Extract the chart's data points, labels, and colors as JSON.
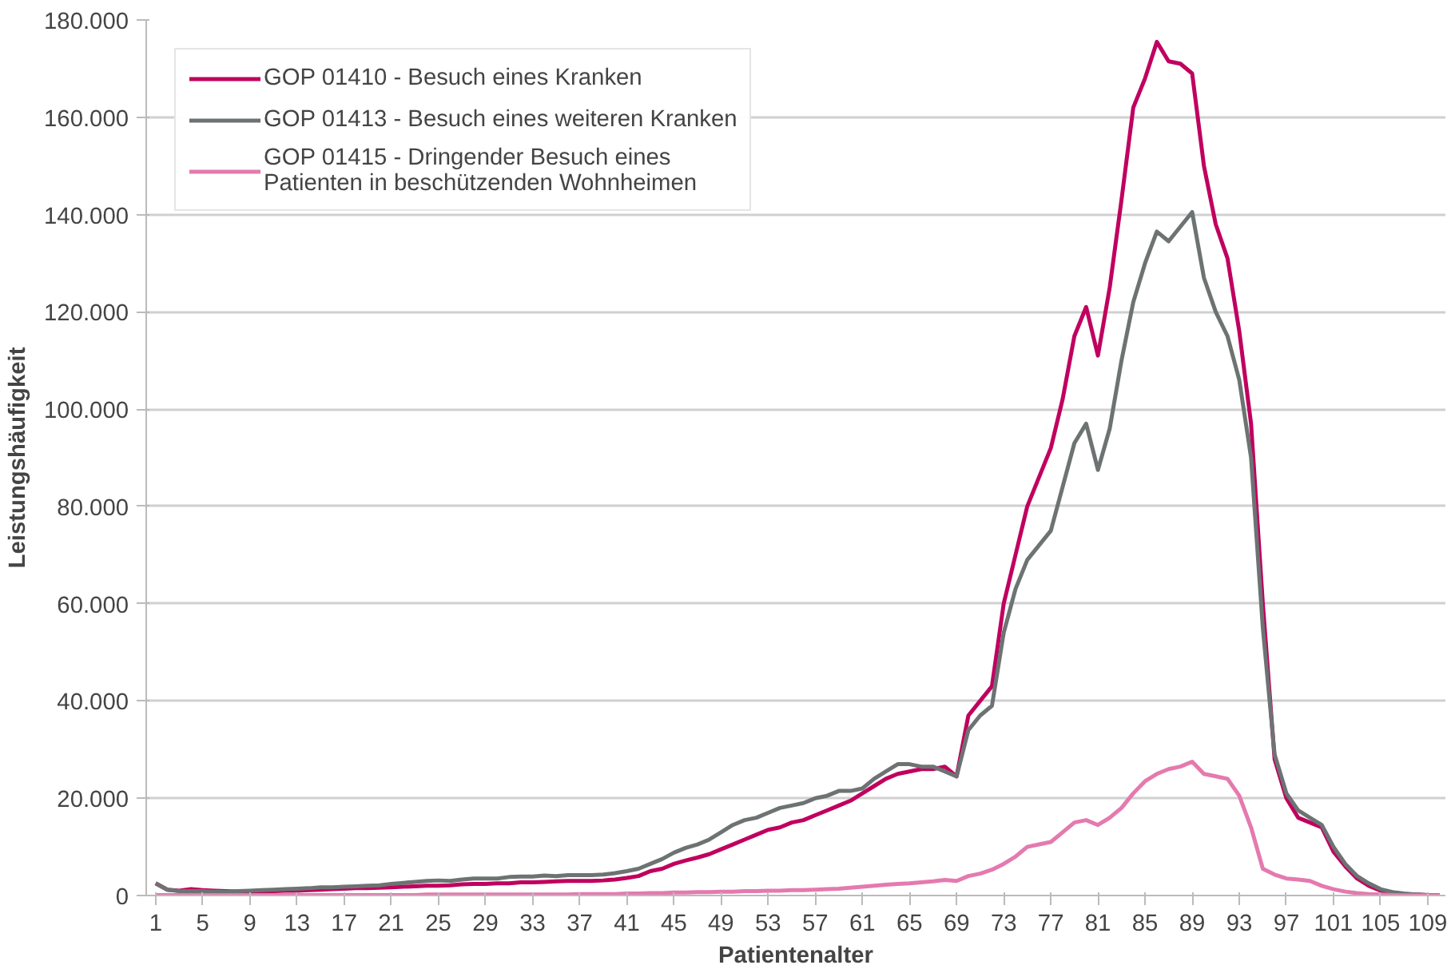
{
  "chart_data": {
    "type": "line",
    "xlabel": "Patientenalter",
    "ylabel": "Leistungshäufigkeit",
    "x": [
      1,
      2,
      3,
      4,
      5,
      6,
      7,
      8,
      9,
      10,
      11,
      12,
      13,
      14,
      15,
      16,
      17,
      18,
      19,
      20,
      21,
      22,
      23,
      24,
      25,
      26,
      27,
      28,
      29,
      30,
      31,
      32,
      33,
      34,
      35,
      36,
      37,
      38,
      39,
      40,
      41,
      42,
      43,
      44,
      45,
      46,
      47,
      48,
      49,
      50,
      51,
      52,
      53,
      54,
      55,
      56,
      57,
      58,
      59,
      60,
      61,
      62,
      63,
      64,
      65,
      66,
      67,
      68,
      69,
      70,
      71,
      72,
      73,
      74,
      75,
      76,
      77,
      78,
      79,
      80,
      81,
      82,
      83,
      84,
      85,
      86,
      87,
      88,
      89,
      90,
      91,
      92,
      93,
      94,
      95,
      96,
      97,
      98,
      99,
      100,
      101,
      102,
      103,
      104,
      105,
      106,
      107,
      108,
      109,
      110
    ],
    "xlim": [
      0.2,
      110.5
    ],
    "xticks": [
      1,
      5,
      9,
      13,
      17,
      21,
      25,
      29,
      33,
      37,
      41,
      45,
      49,
      53,
      57,
      61,
      65,
      69,
      73,
      77,
      81,
      85,
      89,
      93,
      97,
      101,
      105,
      109
    ],
    "ylim": [
      0,
      180000
    ],
    "yticks": [
      {
        "value": 0,
        "label": "0"
      },
      {
        "value": 20000,
        "label": "20.000"
      },
      {
        "value": 40000,
        "label": "40.000"
      },
      {
        "value": 60000,
        "label": "60.000"
      },
      {
        "value": 80000,
        "label": "80.000"
      },
      {
        "value": 100000,
        "label": "100.000"
      },
      {
        "value": 120000,
        "label": "120.000"
      },
      {
        "value": 140000,
        "label": "140.000"
      },
      {
        "value": 160000,
        "label": "160.000"
      },
      {
        "value": 180000,
        "label": "180.000"
      }
    ],
    "grid": "y",
    "legend": "top left",
    "marker": "none",
    "line_style": "solid",
    "series": [
      {
        "name": "GOP 01410 - Besuch eines Kranken",
        "color": "#c0005f",
        "values": [
          2500,
          1200,
          1000,
          1300,
          1100,
          1000,
          900,
          800,
          800,
          900,
          900,
          1000,
          1000,
          1100,
          1200,
          1300,
          1400,
          1500,
          1500,
          1600,
          1700,
          1800,
          1900,
          2000,
          2000,
          2100,
          2300,
          2400,
          2400,
          2500,
          2500,
          2700,
          2700,
          2800,
          2900,
          3000,
          3000,
          3000,
          3100,
          3300,
          3600,
          4000,
          5000,
          5500,
          6500,
          7200,
          7800,
          8500,
          9500,
          10500,
          11500,
          12500,
          13500,
          14000,
          15000,
          15500,
          16500,
          17500,
          18500,
          19500,
          21000,
          22500,
          24000,
          25000,
          25500,
          26000,
          26000,
          26500,
          24500,
          37000,
          40000,
          43000,
          60000,
          70000,
          80000,
          86000,
          92000,
          102000,
          115000,
          121000,
          111000,
          125000,
          143000,
          162000,
          168000,
          175500,
          171500,
          171000,
          169000,
          150000,
          138000,
          131000,
          116000,
          97000,
          60000,
          28000,
          20000,
          16000,
          15000,
          14000,
          9000,
          6000,
          3500,
          2000,
          1000,
          600,
          300,
          200,
          100,
          50
        ]
      },
      {
        "name": "GOP 01413 - Besuch eines weiteren Kranken",
        "color": "#6d7373",
        "values": [
          2500,
          1200,
          900,
          900,
          900,
          800,
          800,
          900,
          1000,
          1100,
          1200,
          1300,
          1400,
          1500,
          1700,
          1700,
          1800,
          1900,
          2000,
          2100,
          2400,
          2600,
          2800,
          3000,
          3100,
          3000,
          3300,
          3500,
          3500,
          3500,
          3800,
          3900,
          3900,
          4100,
          4000,
          4200,
          4200,
          4200,
          4300,
          4600,
          5000,
          5500,
          6500,
          7500,
          8800,
          9800,
          10500,
          11500,
          13000,
          14500,
          15500,
          16000,
          17000,
          18000,
          18500,
          19000,
          20000,
          20500,
          21500,
          21500,
          22000,
          24000,
          25500,
          27000,
          27000,
          26500,
          26500,
          25500,
          24500,
          34000,
          37000,
          39000,
          54000,
          63000,
          69000,
          72000,
          75000,
          84000,
          93000,
          97000,
          87500,
          96000,
          110000,
          122000,
          130000,
          136500,
          134500,
          137500,
          140500,
          127000,
          120000,
          115000,
          106000,
          90000,
          55000,
          29000,
          21000,
          17500,
          16000,
          14500,
          10000,
          6500,
          4000,
          2500,
          1300,
          700,
          400,
          200,
          100,
          50
        ]
      },
      {
        "name": "GOP 01415 - Dringender Besuch eines\nPatienten in beschützenden Wohnheimen",
        "color": "#e47aaf",
        "values": [
          100,
          100,
          100,
          100,
          100,
          100,
          100,
          100,
          100,
          100,
          100,
          100,
          100,
          100,
          100,
          100,
          100,
          100,
          100,
          100,
          100,
          100,
          100,
          200,
          200,
          200,
          200,
          200,
          200,
          200,
          200,
          200,
          200,
          200,
          200,
          200,
          300,
          300,
          300,
          300,
          400,
          400,
          500,
          500,
          600,
          600,
          700,
          700,
          800,
          800,
          900,
          900,
          1000,
          1000,
          1100,
          1100,
          1200,
          1300,
          1400,
          1600,
          1800,
          2000,
          2200,
          2400,
          2500,
          2700,
          2900,
          3200,
          3000,
          4000,
          4500,
          5300,
          6500,
          8000,
          10000,
          10500,
          11000,
          13000,
          15000,
          15500,
          14500,
          16000,
          18000,
          21000,
          23500,
          25000,
          26000,
          26500,
          27500,
          25000,
          24500,
          24000,
          20500,
          14000,
          5500,
          4300,
          3500,
          3300,
          3000,
          2000,
          1300,
          800,
          500,
          300,
          200,
          100,
          50,
          50,
          0,
          0
        ]
      }
    ]
  }
}
